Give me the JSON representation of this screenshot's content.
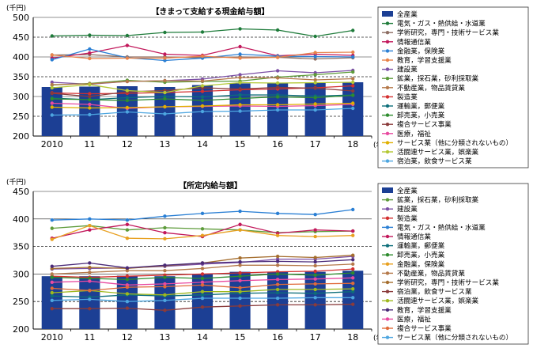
{
  "chart_data": [
    {
      "type": "bar+line",
      "title": "【きまって支給する現金給与額】",
      "unit_label": "(千円)",
      "x_suffix": "(年)",
      "x": [
        "2010",
        "11",
        "12",
        "13",
        "14",
        "15",
        "16",
        "17",
        "18"
      ],
      "ylim": [
        200,
        500
      ],
      "yticks": [
        200,
        250,
        300,
        350,
        400,
        450,
        500
      ],
      "dashed_gridlines": [
        250,
        350,
        450
      ],
      "grid": true,
      "legend_position": "right",
      "bar_series": {
        "name": "全産業",
        "color": "#1c3f94",
        "values": [
          324,
          325,
          326,
          324,
          329,
          333,
          334,
          334,
          336
        ]
      },
      "series": [
        {
          "name": "電気・ガス・熱供給・水道業",
          "color": "#1e7b3a",
          "marker": "dot",
          "values": [
            453,
            455,
            454,
            462,
            463,
            471,
            468,
            452,
            467
          ]
        },
        {
          "name": "学術研究，専門・技術サービス業",
          "color": "#8d6e63",
          "marker": "dot",
          "values": [
            405,
            406,
            400,
            400,
            398,
            400,
            399,
            395,
            398
          ]
        },
        {
          "name": "情報通信業",
          "color": "#c2185b",
          "marker": "dot",
          "values": [
            397,
            410,
            429,
            407,
            404,
            426,
            403,
            407,
            404
          ]
        },
        {
          "name": "金融業，保険業",
          "color": "#2a7fd4",
          "marker": "dot",
          "values": [
            393,
            420,
            398,
            391,
            397,
            407,
            402,
            401,
            400
          ]
        },
        {
          "name": "教育，学習支援業",
          "color": "#e8834a",
          "marker": "dot",
          "values": [
            405,
            396,
            397,
            397,
            402,
            397,
            399,
            411,
            412
          ]
        },
        {
          "name": "建設業",
          "color": "#7b4fa5",
          "marker": "dot",
          "values": [
            336,
            331,
            338,
            340,
            344,
            355,
            365,
            360,
            366
          ]
        },
        {
          "name": "鉱業，採石業，砂利採取業",
          "color": "#5d9b3a",
          "marker": "dot",
          "values": [
            329,
            333,
            341,
            336,
            338,
            339,
            349,
            355,
            362
          ]
        },
        {
          "name": "不動産業，物品賃貸業",
          "color": "#b5794a",
          "marker": "dot",
          "values": [
            330,
            332,
            338,
            340,
            339,
            348,
            347,
            342,
            345
          ]
        },
        {
          "name": "製造業",
          "color": "#d32f2f",
          "marker": "dot",
          "values": [
            309,
            307,
            308,
            310,
            313,
            317,
            319,
            322,
            327
          ]
        },
        {
          "name": "運輸業，郵便業",
          "color": "#0d6e7a",
          "marker": "dot",
          "values": [
            296,
            292,
            297,
            300,
            299,
            304,
            304,
            301,
            304
          ]
        },
        {
          "name": "卸売業，小売業",
          "color": "#2e8b2e",
          "marker": "dot",
          "values": [
            294,
            292,
            290,
            294,
            290,
            295,
            299,
            297,
            303
          ]
        },
        {
          "name": "複合サービス事業",
          "color": "#8a3b3b",
          "marker": "dot",
          "values": [
            308,
            300,
            312,
            315,
            322,
            319,
            323,
            321,
            314
          ]
        },
        {
          "name": "医療，福祉",
          "color": "#e84aa0",
          "marker": "dot",
          "values": [
            283,
            280,
            270,
            274,
            275,
            276,
            275,
            277,
            280
          ]
        },
        {
          "name": "サービス業（他に分類されないもの）",
          "color": "#e0b000",
          "marker": "dot",
          "values": [
            273,
            271,
            272,
            274,
            276,
            279,
            279,
            281,
            283
          ]
        },
        {
          "name": "活闘連サービス業，娯楽業",
          "color": "#b3c833",
          "marker": "dot",
          "values": [
            322,
            330,
            315,
            310,
            327,
            335,
            334,
            335,
            336
          ]
        },
        {
          "name": "宿泊業，飲食サービス業",
          "color": "#4da6e0",
          "marker": "dot",
          "values": [
            253,
            254,
            261,
            256,
            262,
            263,
            266,
            266,
            270
          ]
        }
      ]
    },
    {
      "type": "bar+line",
      "title": "【所定内給与額】",
      "unit_label": "(千円)",
      "x_suffix": "(年)",
      "x": [
        "2010",
        "11",
        "12",
        "13",
        "14",
        "15",
        "16",
        "17",
        "18"
      ],
      "ylim": [
        200,
        450
      ],
      "yticks": [
        200,
        250,
        300,
        350,
        400,
        450
      ],
      "dashed_gridlines": [
        250,
        350
      ],
      "grid": true,
      "legend_position": "right",
      "bar_series": {
        "name": "全産業",
        "color": "#1c3f94",
        "values": [
          296,
          296,
          297,
          296,
          300,
          304,
          304,
          304,
          306
        ]
      },
      "series": [
        {
          "name": "鉱業，採石業，砂利採取業",
          "color": "#5d9b3a",
          "marker": "dot",
          "values": [
            383,
            388,
            380,
            384,
            382,
            380,
            375,
            377,
            378
          ]
        },
        {
          "name": "建設業",
          "color": "#7b4fa5",
          "marker": "dot",
          "values": [
            309,
            310,
            311,
            314,
            318,
            321,
            327,
            327,
            332
          ]
        },
        {
          "name": "製造業",
          "color": "#d32f2f",
          "marker": "dot",
          "values": [
            296,
            294,
            296,
            298,
            300,
            302,
            304,
            305,
            309
          ]
        },
        {
          "name": "電気・ガス・熱供給・水道業",
          "color": "#2a7fd4",
          "marker": "dot",
          "values": [
            398,
            400,
            398,
            405,
            410,
            414,
            410,
            408,
            417
          ]
        },
        {
          "name": "情報通信業",
          "color": "#c2185b",
          "marker": "dot",
          "values": [
            365,
            380,
            390,
            375,
            368,
            390,
            374,
            380,
            378
          ]
        },
        {
          "name": "運輸業，郵便業",
          "color": "#0d6e7a",
          "marker": "dot",
          "values": [
            260,
            258,
            262,
            260,
            262,
            265,
            266,
            265,
            268
          ]
        },
        {
          "name": "卸売業，小売業",
          "color": "#2e8b2e",
          "marker": "dot",
          "values": [
            294,
            292,
            290,
            294,
            292,
            296,
            300,
            298,
            302
          ]
        },
        {
          "name": "金融業，保険業",
          "color": "#e8a020",
          "marker": "dot",
          "values": [
            363,
            388,
            365,
            364,
            370,
            380,
            370,
            368,
            370
          ]
        },
        {
          "name": "不動産業，物品賃貸業",
          "color": "#b5794a",
          "marker": "dot",
          "values": [
            300,
            303,
            306,
            306,
            310,
            316,
            316,
            315,
            318
          ]
        },
        {
          "name": "学術研究，専門・技術サービス業",
          "color": "#a56e2e",
          "marker": "dot",
          "values": [
            310,
            312,
            310,
            315,
            320,
            329,
            332,
            330,
            334
          ]
        },
        {
          "name": "宿泊業，飲食サービス業",
          "color": "#8a3b3b",
          "marker": "dot",
          "values": [
            237,
            237,
            238,
            234,
            240,
            242,
            244,
            244,
            245
          ]
        },
        {
          "name": "活闘連サービス業，娯楽業",
          "color": "#9fb81e",
          "marker": "dot",
          "values": [
            266,
            270,
            264,
            262,
            268,
            268,
            272,
            272,
            273
          ]
        },
        {
          "name": "教育，学習支援業",
          "color": "#4a2a78",
          "marker": "dot",
          "values": [
            314,
            320,
            311,
            316,
            320,
            322,
            323,
            322,
            326
          ]
        },
        {
          "name": "医療，福祉",
          "color": "#e84aa0",
          "marker": "dot",
          "values": [
            285,
            287,
            280,
            282,
            285,
            288,
            290,
            291,
            293
          ]
        },
        {
          "name": "複合サービス事業",
          "color": "#e06b3a",
          "marker": "dot",
          "values": [
            274,
            270,
            276,
            277,
            280,
            275,
            281,
            282,
            283
          ]
        },
        {
          "name": "サービス業（他に分類されないもの）",
          "color": "#4da6e0",
          "marker": "dot",
          "values": [
            252,
            254,
            250,
            252,
            256,
            256,
            256,
            257,
            257
          ]
        }
      ]
    }
  ]
}
